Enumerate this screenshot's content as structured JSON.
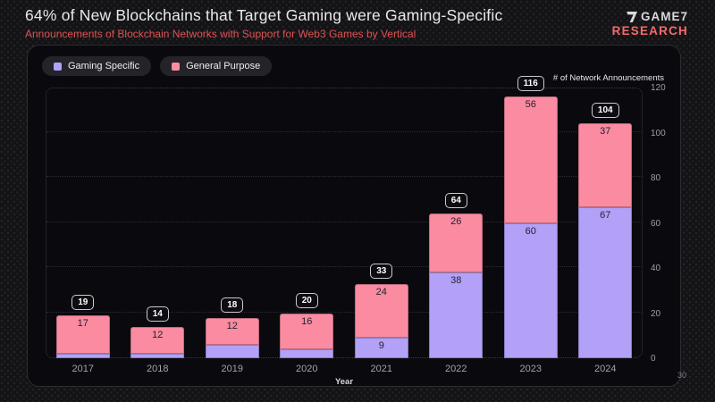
{
  "header": {
    "title": "64% of New Blockchains that Target Gaming were Gaming-Specific",
    "subtitle": "Announcements of Blockchain Networks with Support for Web3 Games by Vertical",
    "logo": {
      "brand": "GAME7",
      "sub": "RESEARCH"
    }
  },
  "legend": [
    {
      "label": "Gaming Specific",
      "color": "#b3a0f7"
    },
    {
      "label": "General Purpose",
      "color": "#fa8ba1"
    }
  ],
  "chart_data": {
    "type": "bar",
    "stacked": true,
    "categories": [
      "2017",
      "2018",
      "2019",
      "2020",
      "2021",
      "2022",
      "2023",
      "2024"
    ],
    "series": [
      {
        "name": "Gaming Specific",
        "color": "#b3a0f7",
        "values": [
          2,
          2,
          6,
          4,
          9,
          38,
          60,
          67
        ]
      },
      {
        "name": "General Purpose",
        "color": "#fa8ba1",
        "values": [
          17,
          12,
          12,
          16,
          24,
          26,
          56,
          37
        ]
      }
    ],
    "totals": [
      19,
      14,
      18,
      20,
      33,
      64,
      116,
      104
    ],
    "title": "Announcements of Blockchain Networks with Support for Web3 Games by Vertical",
    "xlabel": "Year",
    "ylabel": "# of Network Announcements",
    "y_ticks": [
      0,
      20,
      40,
      60,
      80,
      100,
      120
    ],
    "ylim": [
      0,
      120
    ],
    "grid": "dotted-horizontal",
    "legend_position": "top-left"
  },
  "colors": {
    "background": "#131316",
    "panel": "#0a0a0e",
    "accent_red": "#e05252",
    "gaming_specific": "#b3a0f7",
    "general_purpose": "#fa8ba1",
    "segment_label": "#22222f"
  },
  "footer": {
    "page_number": "30"
  }
}
